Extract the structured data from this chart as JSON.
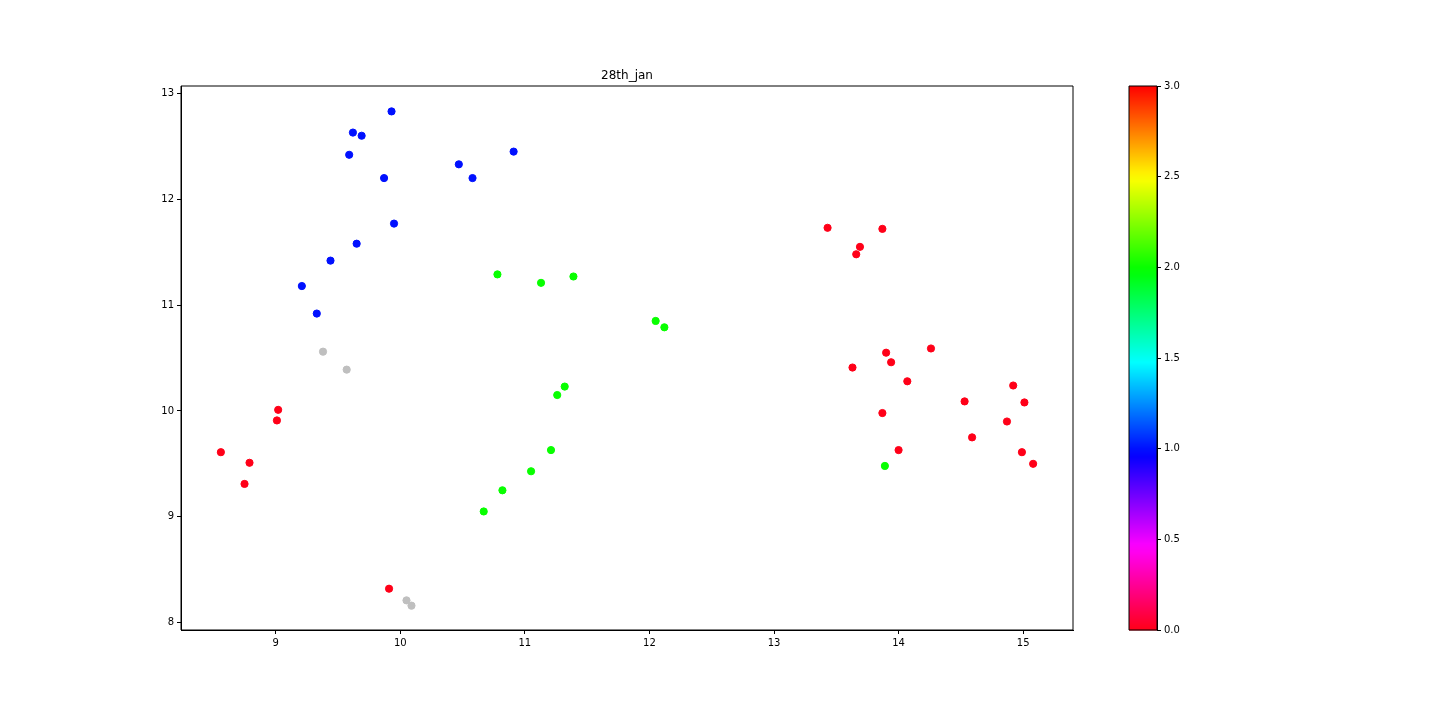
{
  "chart_data": {
    "type": "scatter",
    "title": "28th_jan",
    "xlim": [
      8.24,
      15.4
    ],
    "ylim": [
      7.93,
      13.07
    ],
    "xticks": [
      9,
      10,
      11,
      12,
      13,
      14,
      15
    ],
    "yticks": [
      8,
      9,
      10,
      11,
      12,
      13
    ],
    "clim": [
      0,
      3
    ],
    "cticks": [
      {
        "value": 0,
        "label": "0.0"
      },
      {
        "value": 0.5,
        "label": "0.5"
      },
      {
        "value": 1,
        "label": "1.0"
      },
      {
        "value": 1.5,
        "label": "1.5"
      },
      {
        "value": 2,
        "label": "2.0"
      },
      {
        "value": 2.5,
        "label": "2.5"
      },
      {
        "value": 3,
        "label": "3.0"
      }
    ],
    "legend": false,
    "series": [
      {
        "x": [
          9.93,
          9.62,
          9.69,
          9.59,
          9.87,
          10.47,
          10.58,
          10.91,
          9.95,
          9.65,
          9.44,
          9.21,
          9.33,
          10.78,
          11.13,
          11.39,
          12.05,
          12.12,
          11.32,
          11.26,
          11.21,
          11.05,
          10.82,
          10.67,
          13.89,
          9.02,
          9.01,
          8.56,
          8.79,
          8.75,
          9.91,
          13.43,
          13.87,
          13.69,
          13.66,
          14.26,
          13.9,
          13.94,
          13.63,
          14.07,
          14.92,
          14.53,
          15.01,
          13.87,
          14.87,
          14.59,
          14.0,
          14.99,
          15.08
        ],
        "values": [
          12.83,
          12.63,
          12.6,
          12.42,
          12.2,
          12.33,
          12.2,
          12.45,
          11.77,
          11.58,
          11.42,
          11.18,
          10.92,
          11.29,
          11.21,
          11.27,
          10.85,
          10.79,
          10.23,
          10.15,
          9.63,
          9.43,
          9.25,
          9.05,
          9.48,
          10.01,
          9.91,
          9.61,
          9.51,
          9.31,
          8.32,
          11.73,
          11.72,
          11.55,
          11.48,
          10.59,
          10.55,
          10.46,
          10.41,
          10.28,
          10.24,
          10.09,
          10.08,
          9.98,
          9.9,
          9.75,
          9.63,
          9.61,
          9.5
        ],
        "cvalues": [
          1,
          1,
          1,
          1,
          1,
          1,
          1,
          1,
          1,
          1,
          1,
          1,
          1,
          2,
          2,
          2,
          2,
          2,
          2,
          2,
          2,
          2,
          2,
          2,
          2,
          0,
          0,
          0,
          0,
          0,
          0,
          0,
          0,
          0,
          0,
          0,
          0,
          0,
          0,
          0,
          0,
          0,
          0,
          0,
          0,
          0,
          0,
          0,
          0
        ],
        "colors": [
          "#0010ff",
          "#0010ff",
          "#0010ff",
          "#0010ff",
          "#0010ff",
          "#0010ff",
          "#0010ff",
          "#0010ff",
          "#0010ff",
          "#0010ff",
          "#0010ff",
          "#0010ff",
          "#0010ff",
          "#08ff00",
          "#08ff00",
          "#08ff00",
          "#08ff00",
          "#08ff00",
          "#08ff00",
          "#08ff00",
          "#08ff00",
          "#08ff00",
          "#08ff00",
          "#08ff00",
          "#08ff00",
          "#ff0018",
          "#ff0018",
          "#ff0018",
          "#ff0018",
          "#ff0018",
          "#ff0018",
          "#ff0018",
          "#ff0018",
          "#ff0018",
          "#ff0018",
          "#ff0018",
          "#ff0018",
          "#ff0018",
          "#ff0018",
          "#ff0018",
          "#ff0018",
          "#ff0018",
          "#ff0018",
          "#ff0018",
          "#ff0018",
          "#ff0018",
          "#ff0018",
          "#ff0018",
          "#ff0018"
        ]
      },
      {
        "x": [
          9.38,
          9.57,
          10.05,
          10.09
        ],
        "values": [
          10.56,
          10.39,
          8.21,
          8.16
        ],
        "color": "#bfbfbf"
      }
    ]
  }
}
